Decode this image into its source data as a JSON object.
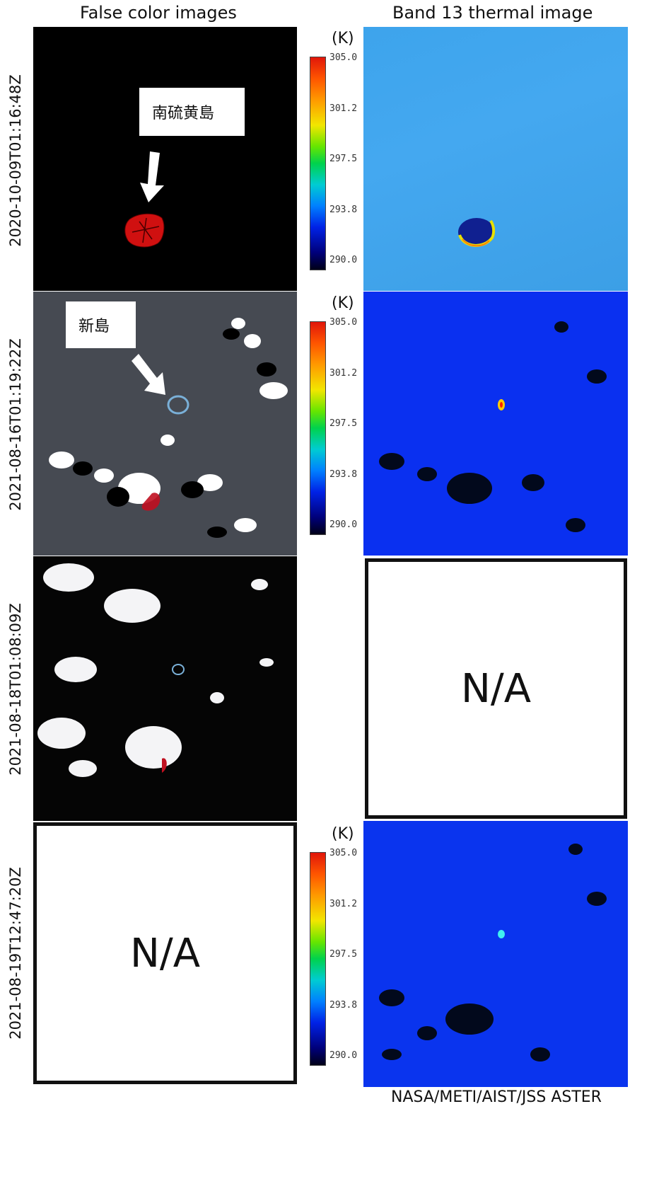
{
  "headers": {
    "left": "False color images",
    "right": "Band 13 thermal image"
  },
  "rows": [
    {
      "timestamp": "2020-10-09T01:16:48Z"
    },
    {
      "timestamp": "2021-08-16T01:19:22Z"
    },
    {
      "timestamp": "2021-08-18T01:08:09Z"
    },
    {
      "timestamp": "2021-08-19T12:47:20Z"
    }
  ],
  "callouts": {
    "island1": "南硫黄島",
    "island2": "新島"
  },
  "na_label": "N/A",
  "colorbar": {
    "unit": "(K)",
    "ticks": [
      "305.0",
      "301.2",
      "297.5",
      "293.8",
      "290.0"
    ]
  },
  "credit": "NASA/METI/AIST/JSS ASTER",
  "colors": {
    "ocean_thermal_calm": "#3f9fe8",
    "ocean_thermal_dark": "#0a2ef0",
    "island_red": "#d01010"
  }
}
